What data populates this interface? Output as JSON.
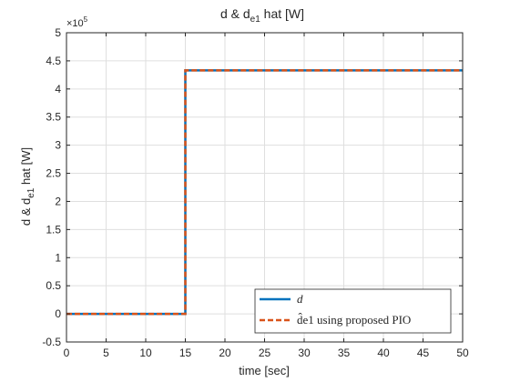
{
  "chart_data": {
    "type": "line",
    "title": {
      "main": "d & d",
      "sub": "e1",
      "rest": " hat [W]"
    },
    "xlabel": "time [sec]",
    "ylabel": {
      "main": "d & d",
      "sub": "e1",
      "rest": " hat [W]"
    },
    "xlim": [
      0,
      50
    ],
    "ylim": [
      -0.5,
      5
    ],
    "y_multiplier": {
      "base": "×10",
      "exp": "5"
    },
    "x_ticks": [
      0,
      5,
      10,
      15,
      20,
      25,
      30,
      35,
      40,
      45,
      50
    ],
    "y_ticks": [
      -0.5,
      0,
      0.5,
      1,
      1.5,
      2,
      2.5,
      3,
      3.5,
      4,
      4.5,
      5
    ],
    "grid": true,
    "legend_position": "bottom-right",
    "series": [
      {
        "name": "d",
        "color": "#0072BD",
        "style": "solid",
        "x": [
          0,
          15,
          15,
          50
        ],
        "y": [
          0,
          0,
          4.33,
          4.33
        ]
      },
      {
        "name": "d̂e1 using proposed PIO",
        "color": "#D95319",
        "style": "dashed",
        "x": [
          0,
          15,
          15,
          50
        ],
        "y": [
          0,
          0,
          4.33,
          4.33
        ]
      }
    ]
  }
}
